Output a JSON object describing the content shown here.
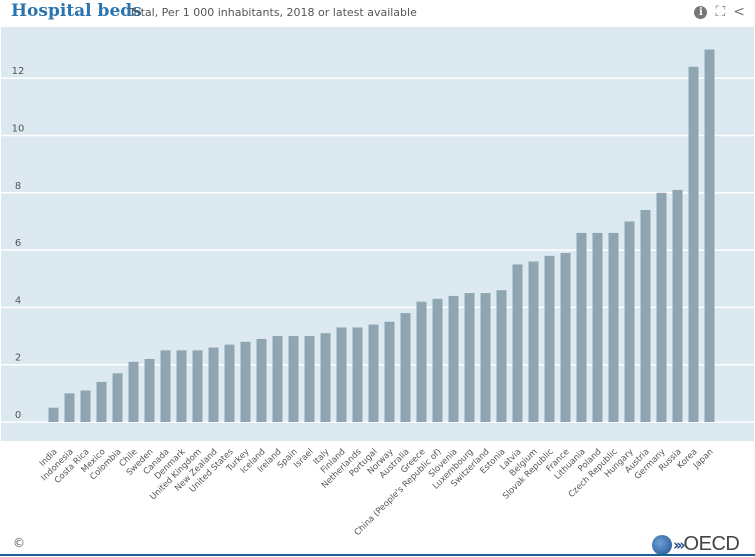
{
  "header": {
    "title": "Hospital beds",
    "subtitle": "Total, Per 1 000 inhabitants, 2018 or latest available",
    "icons": [
      "info-icon",
      "fullscreen-icon",
      "share-icon"
    ]
  },
  "footer": {
    "copyright": "©",
    "logo_text": "OECD"
  },
  "colors": {
    "bar": "#8fa5b2",
    "plot_background": "#dde9f1",
    "gridline": "#ffffff",
    "title": "#2a74b0"
  },
  "chart_data": {
    "type": "bar",
    "title": "Hospital beds",
    "subtitle": "Total, Per 1 000 inhabitants, 2018 or latest available",
    "xlabel": "",
    "ylabel": "",
    "ylim": [
      0,
      13.5
    ],
    "yticks": [
      0,
      2,
      4,
      6,
      8,
      10,
      12
    ],
    "grid": true,
    "categories": [
      "India",
      "Indonesia",
      "Costa Rica",
      "Mexico",
      "Colombia",
      "Chile",
      "Sweden",
      "Canada",
      "Denmark",
      "United Kingdom",
      "New Zealand",
      "United States",
      "Turkey",
      "Iceland",
      "Ireland",
      "Spain",
      "Israel",
      "Italy",
      "Finland",
      "Netherlands",
      "Portugal",
      "Norway",
      "Australia",
      "Greece",
      "China (People's Republic of)",
      "Slovenia",
      "Luxembourg",
      "Switzerland",
      "Estonia",
      "Latvia",
      "Belgium",
      "Slovak Republic",
      "France",
      "Lithuania",
      "Poland",
      "Czech Republic",
      "Hungary",
      "Austria",
      "Germany",
      "Russia",
      "Korea",
      "Japan"
    ],
    "values": [
      0.5,
      1.0,
      1.1,
      1.4,
      1.7,
      2.1,
      2.2,
      2.5,
      2.5,
      2.5,
      2.6,
      2.7,
      2.8,
      2.9,
      3.0,
      3.0,
      3.0,
      3.1,
      3.3,
      3.3,
      3.4,
      3.5,
      3.8,
      4.2,
      4.3,
      4.4,
      4.5,
      4.5,
      4.6,
      5.5,
      5.6,
      5.8,
      5.9,
      6.6,
      6.6,
      6.6,
      7.0,
      7.4,
      8.0,
      8.1,
      12.4,
      13.0
    ]
  }
}
